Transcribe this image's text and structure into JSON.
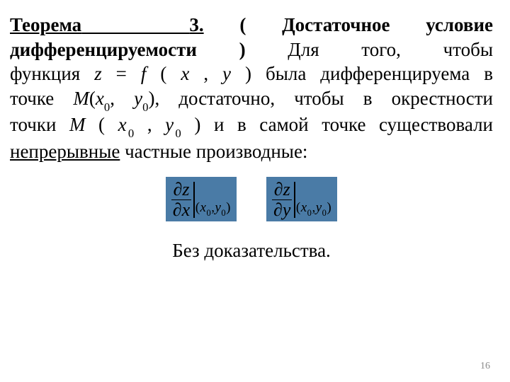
{
  "text": {
    "theorem_label": "Теорема",
    "theorem_num": "3.",
    "open_paren": "(",
    "cond_title": "Достаточное условие",
    "word_diff": "дифференцируемости",
    "close_paren": ")",
    "sent_a": "Для того, чтобы",
    "sent_b1": "функция ",
    "eq_z": "z",
    "eq_eq": " = ",
    "eq_f": "f",
    "eq_open": " ( ",
    "eq_x": "x",
    "eq_comma": " , ",
    "eq_y": "y",
    "eq_close": " )",
    "sent_b2": " была дифференцируема в",
    "sent_c1": "точке ",
    "M1": "M",
    "p1_open": "(",
    "x": "x",
    "zero": "0",
    "p_comma": ", ",
    "y": "y",
    "p1_close": ")",
    "sent_c2": ", достаточно, чтобы в окрестности",
    "sent_d1": "точки ",
    "M2": "M",
    "p2_open": " ( ",
    "p2_mid": " , ",
    "p2_close": " )",
    "sent_d2": " и в самой точке  существовали",
    "cont": "непрерывные",
    "sent_e": " частные производные:"
  },
  "formula": {
    "partial": "∂",
    "z": "z",
    "x": "x",
    "y": "y",
    "pt_open": "(",
    "pt_x": "x",
    "pt_zero": "0",
    "pt_comma": ",",
    "pt_y": "y",
    "pt_close": ")",
    "box_bg": "#4a7ba6"
  },
  "no_proof": "Без доказательства.",
  "page_number": "16",
  "colors": {
    "bg": "#ffffff",
    "text": "#000000",
    "pagenum": "#8b8b8b"
  }
}
